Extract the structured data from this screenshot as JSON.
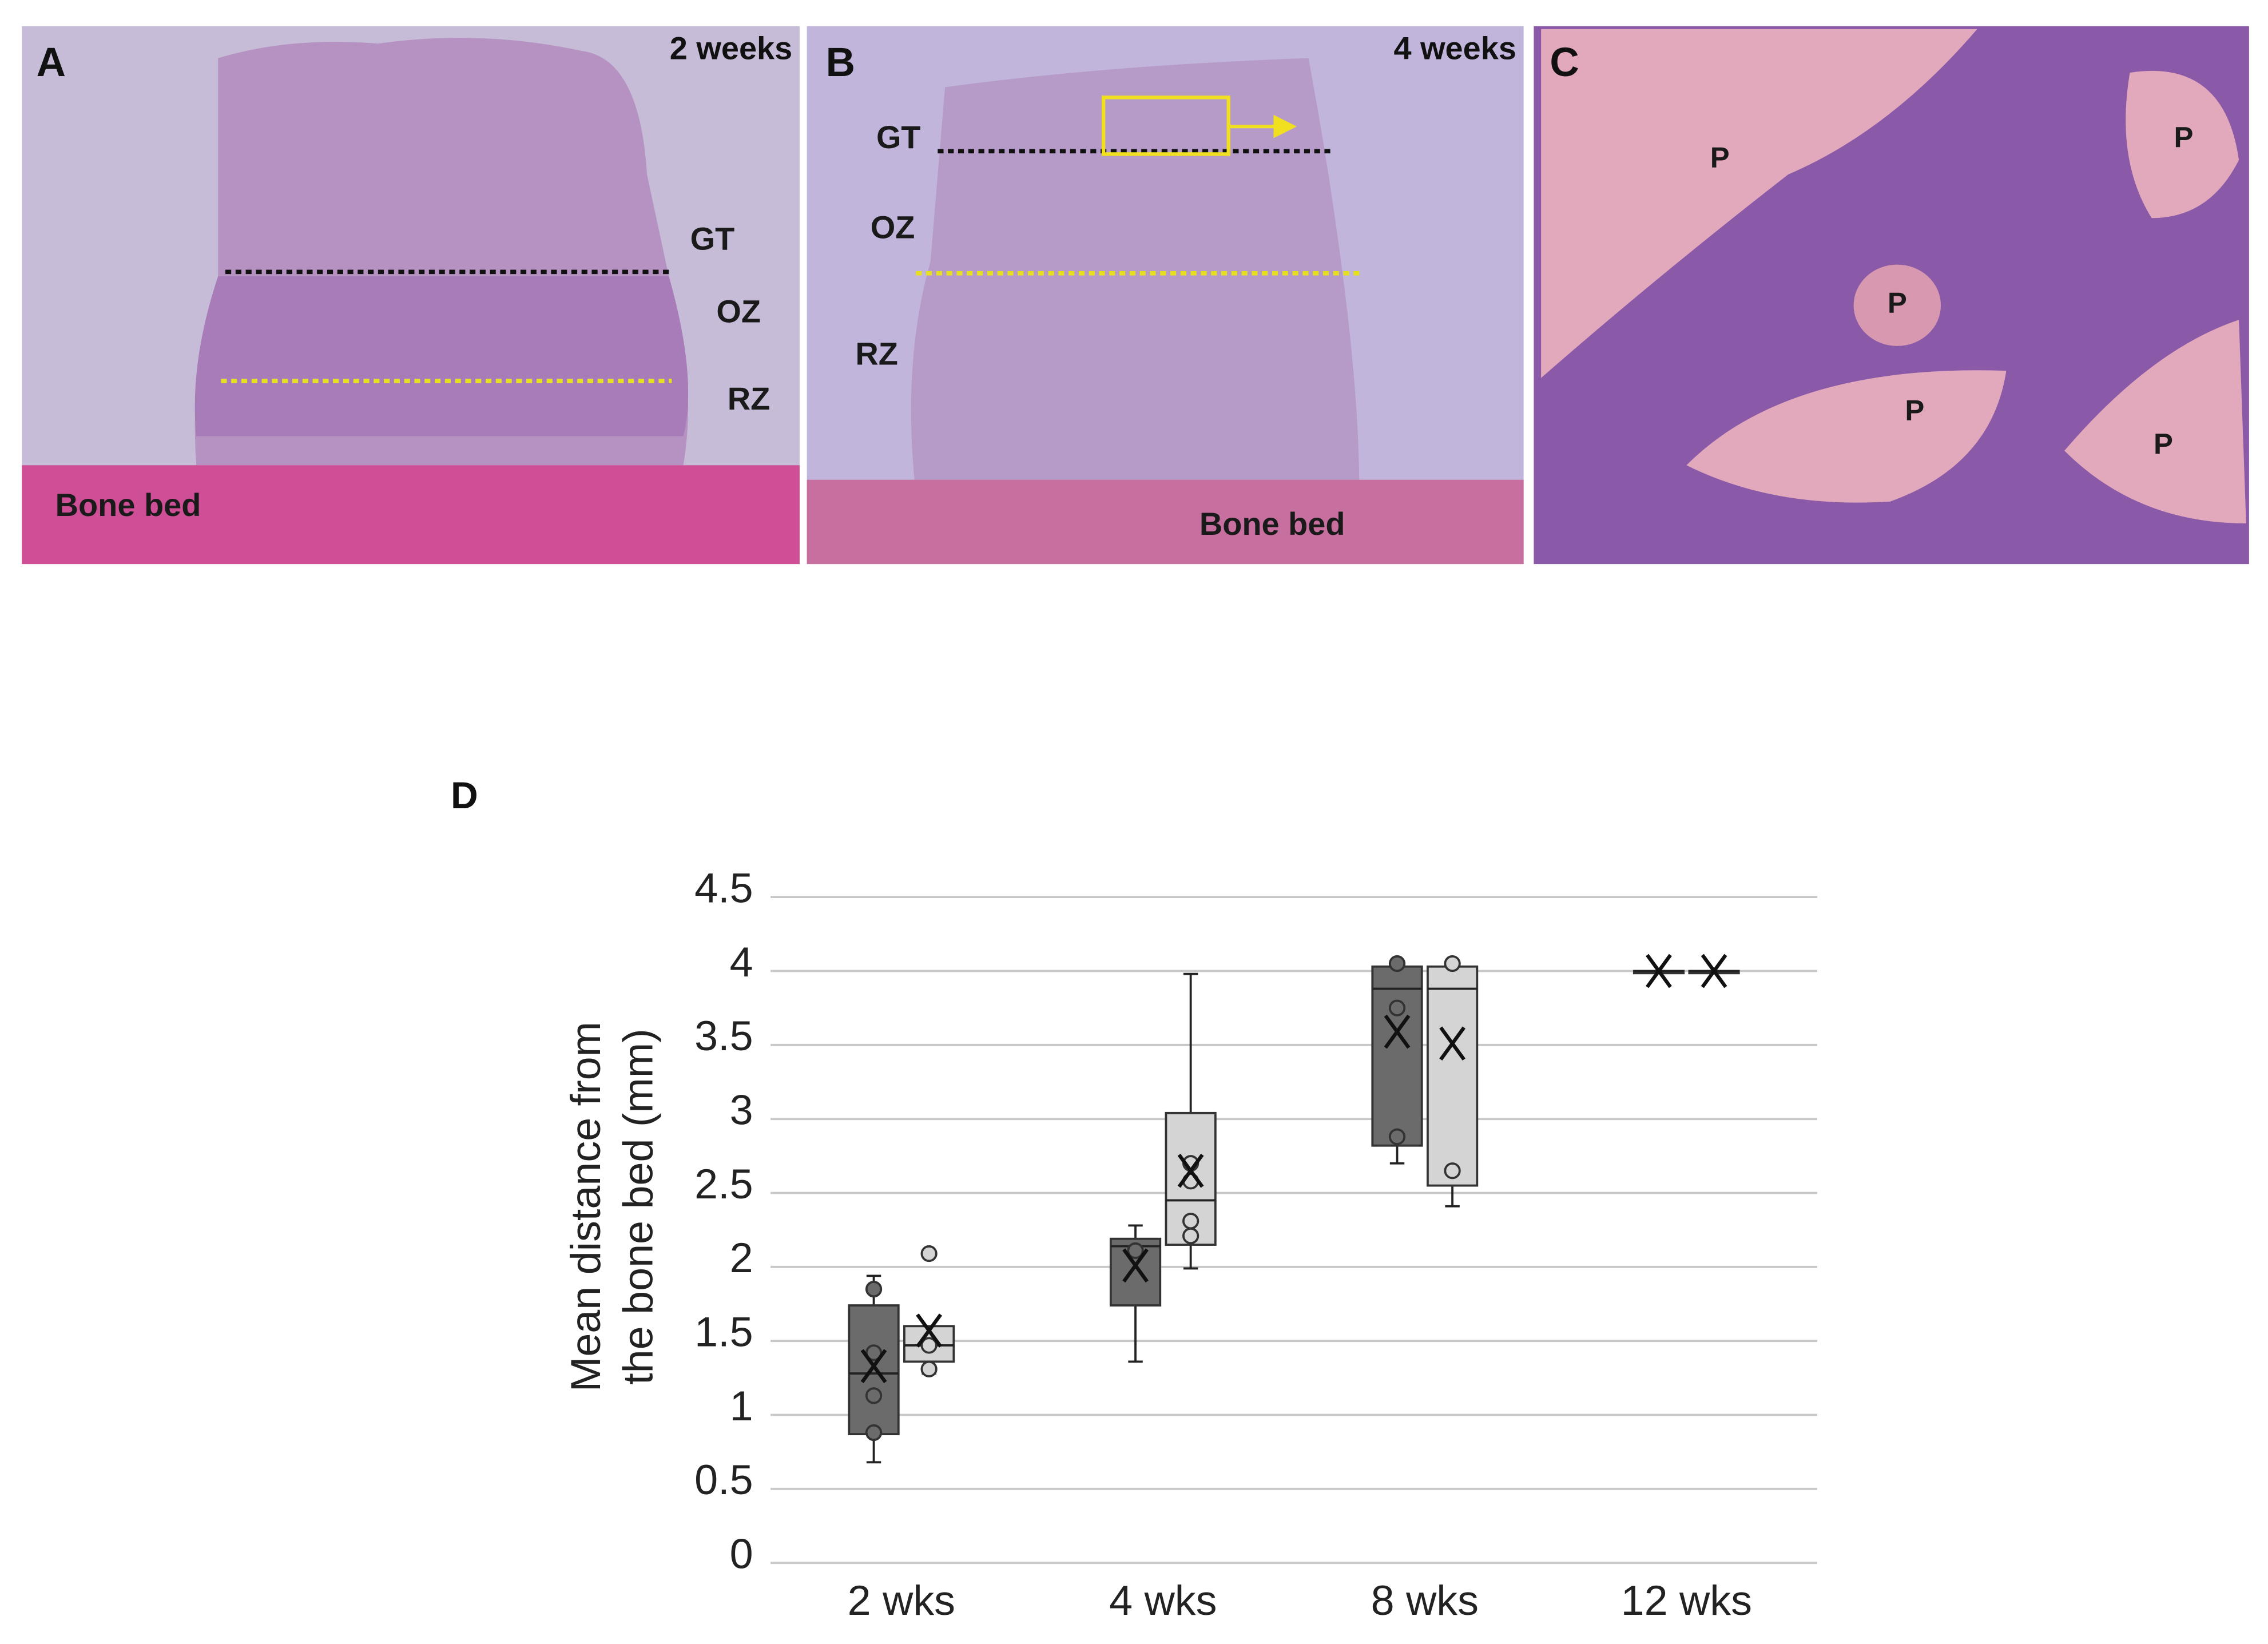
{
  "panels": [
    {
      "letter": "A",
      "caption": "2 weeks",
      "labels": [
        "GT",
        "OZ",
        "RZ",
        "Bone bed"
      ]
    },
    {
      "letter": "B",
      "caption": "4 weeks",
      "labels": [
        "GT",
        "OZ",
        "RZ",
        "Bone bed"
      ]
    },
    {
      "letter": "C",
      "labels": [
        "P",
        "P",
        "P",
        "P",
        "P"
      ]
    }
  ],
  "chart_data": {
    "type": "box",
    "letter": "D",
    "y_label": [
      "Mean distance from",
      "the bone bed  (mm)"
    ],
    "categories": [
      "2 wks",
      "4 wks",
      "8 wks",
      "12 wks"
    ],
    "ylim": [
      0,
      4.5
    ],
    "yticks": [
      0,
      0.5,
      1,
      1.5,
      2,
      2.5,
      3,
      3.5,
      4,
      4.5
    ],
    "grid": true,
    "series": [
      {
        "color": "#6b6b6b",
        "boxes": [
          {
            "min": 0.68,
            "q1": 0.87,
            "median": 1.28,
            "q3": 1.74,
            "max": 1.94,
            "mean": 1.33,
            "points": [
              1.85,
              1.42,
              1.13,
              0.88
            ]
          },
          {
            "min": 1.36,
            "q1": 1.74,
            "median": 2.14,
            "q3": 2.19,
            "max": 2.28,
            "mean": 2.01,
            "points": [
              2.11
            ]
          },
          {
            "min": 2.7,
            "q1": 2.82,
            "median": 3.88,
            "q3": 4.03,
            "max": 4.05,
            "mean": 3.59,
            "points": [
              4.05,
              3.75,
              2.88
            ]
          },
          {
            "min": 4,
            "q1": 4,
            "median": 4,
            "q3": 4,
            "max": 4,
            "mean": 4,
            "points": []
          }
        ]
      },
      {
        "color": "#d4d4d4",
        "boxes": [
          {
            "min": 1.28,
            "q1": 1.36,
            "median": 1.47,
            "q3": 1.6,
            "max": 1.6,
            "mean": 1.57,
            "points": [
              2.09,
              1.47,
              1.31
            ]
          },
          {
            "min": 1.99,
            "q1": 2.15,
            "median": 2.45,
            "q3": 3.04,
            "max": 3.98,
            "mean": 2.65,
            "points": [
              2.7,
              2.58,
              2.31,
              2.21
            ]
          },
          {
            "min": 2.41,
            "q1": 2.55,
            "median": 3.88,
            "q3": 4.03,
            "max": 4.05,
            "mean": 3.51,
            "points": [
              4.05,
              2.65
            ]
          },
          {
            "min": 4,
            "q1": 4,
            "median": 4,
            "q3": 4,
            "max": 4,
            "mean": 4,
            "points": []
          }
        ]
      }
    ]
  }
}
